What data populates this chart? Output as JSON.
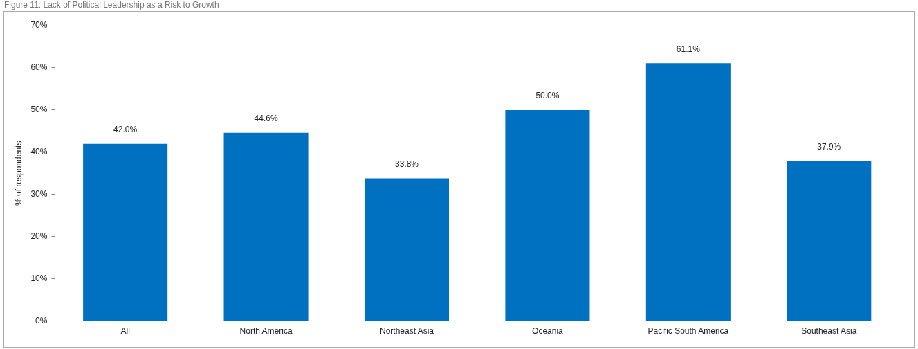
{
  "chart_data": {
    "type": "bar",
    "title": "Figure 11: Lack of Political Leadership as a Risk to Growth",
    "ylabel": "% of respondents",
    "categories": [
      "All",
      "North America",
      "Northeast Asia",
      "Oceania",
      "Pacific South America",
      "Southeast Asia"
    ],
    "values": [
      42.0,
      44.6,
      33.8,
      50.0,
      61.1,
      37.9
    ],
    "value_labels": [
      "42.0%",
      "44.6%",
      "33.8%",
      "50.0%",
      "61.1%",
      "37.9%"
    ],
    "color": "#0070c0",
    "ylim": [
      0,
      70
    ],
    "yticks": [
      {
        "value": 0,
        "label": "0%"
      },
      {
        "value": 10,
        "label": "10%"
      },
      {
        "value": 20,
        "label": "20%"
      },
      {
        "value": 30,
        "label": "30%"
      },
      {
        "value": 40,
        "label": "40%"
      },
      {
        "value": 50,
        "label": "50%"
      },
      {
        "value": 60,
        "label": "60%"
      },
      {
        "value": 70,
        "label": "70%"
      }
    ],
    "grid": false,
    "legend": false
  }
}
